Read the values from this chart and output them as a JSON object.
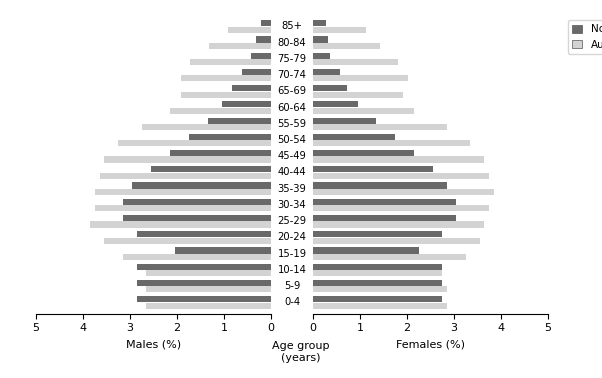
{
  "age_groups": [
    "0-4",
    "5-9",
    "10-14",
    "15-19",
    "20-24",
    "25-29",
    "30-34",
    "35-39",
    "40-44",
    "45-49",
    "50-54",
    "55-59",
    "60-64",
    "65-69",
    "70-74",
    "75-79",
    "80-84",
    "85+"
  ],
  "nt_males": [
    2.85,
    2.85,
    2.85,
    2.05,
    2.85,
    3.15,
    3.15,
    2.95,
    2.55,
    2.15,
    1.75,
    1.35,
    1.05,
    0.82,
    0.62,
    0.42,
    0.32,
    0.22
  ],
  "aus_males": [
    2.65,
    2.65,
    2.65,
    3.15,
    3.55,
    3.85,
    3.75,
    3.75,
    3.65,
    3.55,
    3.25,
    2.75,
    2.15,
    1.92,
    1.92,
    1.72,
    1.32,
    0.92
  ],
  "nt_females": [
    2.75,
    2.75,
    2.75,
    2.25,
    2.75,
    3.05,
    3.05,
    2.85,
    2.55,
    2.15,
    1.75,
    1.35,
    0.95,
    0.72,
    0.57,
    0.37,
    0.32,
    0.27
  ],
  "aus_females": [
    2.85,
    2.85,
    2.75,
    3.25,
    3.55,
    3.65,
    3.75,
    3.85,
    3.75,
    3.65,
    3.35,
    2.85,
    2.15,
    1.92,
    2.02,
    1.82,
    1.42,
    1.12
  ],
  "nt_color": "#696969",
  "aus_color": "#d3d3d3",
  "xlim": 5.0,
  "xlabel_males": "Males (%)",
  "xlabel_females": "Females (%)",
  "xlabel_center": "Age group\n(years)",
  "bar_height": 0.38,
  "bar_sep": 0.02
}
